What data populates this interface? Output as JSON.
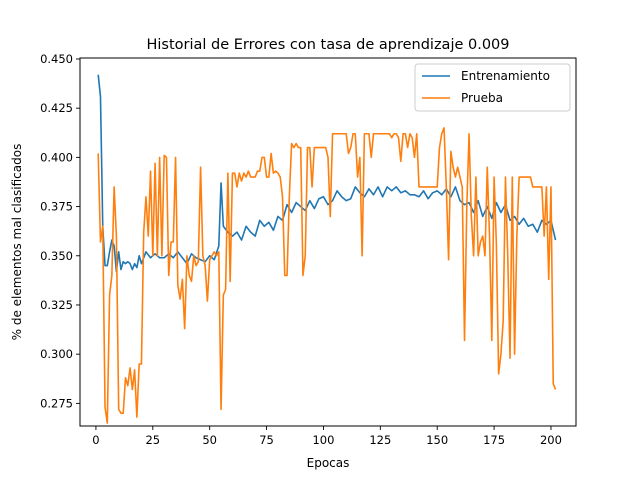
{
  "chart_data": {
    "type": "line",
    "title": "Historial de Errores con tasa de aprendizaje 0.009",
    "xlabel": "Epocas",
    "ylabel": "% de elementos mal clasificados",
    "xlim": [
      -7,
      211
    ],
    "ylim": [
      0.2635,
      0.4505
    ],
    "xticks": [
      0,
      25,
      50,
      75,
      100,
      125,
      150,
      175,
      200
    ],
    "yticks": [
      0.275,
      0.3,
      0.325,
      0.35,
      0.375,
      0.4,
      0.425,
      0.45
    ],
    "ytick_labels": [
      "0.275",
      "0.300",
      "0.325",
      "0.350",
      "0.375",
      "0.400",
      "0.425",
      "0.450"
    ],
    "grid": false,
    "legend_position": "top-right",
    "series": [
      {
        "name": "Entrenamiento",
        "color": "#1f77b4",
        "x": [
          1,
          2,
          3,
          4,
          5,
          6,
          7,
          8,
          9,
          10,
          11,
          12,
          13,
          14,
          15,
          16,
          17,
          18,
          19,
          20,
          22,
          24,
          26,
          28,
          30,
          32,
          34,
          36,
          38,
          40,
          42,
          44,
          46,
          48,
          50,
          52,
          54,
          55,
          56,
          58,
          60,
          62,
          64,
          66,
          68,
          70,
          72,
          74,
          76,
          78,
          80,
          82,
          84,
          86,
          88,
          90,
          92,
          94,
          96,
          98,
          100,
          102,
          104,
          106,
          108,
          110,
          112,
          114,
          116,
          118,
          120,
          122,
          124,
          126,
          128,
          130,
          132,
          134,
          136,
          138,
          140,
          142,
          144,
          146,
          148,
          150,
          152,
          154,
          156,
          158,
          160,
          162,
          164,
          166,
          168,
          170,
          172,
          174,
          176,
          178,
          180,
          182,
          184,
          186,
          188,
          190,
          192,
          194,
          196,
          198,
          200,
          202
        ],
        "values": [
          0.442,
          0.431,
          0.365,
          0.345,
          0.345,
          0.352,
          0.358,
          0.355,
          0.342,
          0.352,
          0.343,
          0.347,
          0.346,
          0.347,
          0.346,
          0.343,
          0.346,
          0.344,
          0.35,
          0.346,
          0.352,
          0.349,
          0.351,
          0.349,
          0.349,
          0.351,
          0.349,
          0.352,
          0.349,
          0.346,
          0.351,
          0.349,
          0.348,
          0.347,
          0.35,
          0.348,
          0.355,
          0.387,
          0.365,
          0.362,
          0.36,
          0.362,
          0.358,
          0.365,
          0.362,
          0.36,
          0.368,
          0.365,
          0.367,
          0.363,
          0.37,
          0.368,
          0.376,
          0.372,
          0.377,
          0.375,
          0.373,
          0.378,
          0.374,
          0.379,
          0.38,
          0.376,
          0.378,
          0.383,
          0.38,
          0.378,
          0.379,
          0.385,
          0.382,
          0.38,
          0.384,
          0.381,
          0.385,
          0.38,
          0.385,
          0.383,
          0.385,
          0.382,
          0.383,
          0.381,
          0.381,
          0.38,
          0.383,
          0.379,
          0.382,
          0.383,
          0.381,
          0.384,
          0.38,
          0.385,
          0.378,
          0.376,
          0.377,
          0.372,
          0.378,
          0.37,
          0.375,
          0.369,
          0.377,
          0.372,
          0.376,
          0.368,
          0.37,
          0.366,
          0.369,
          0.365,
          0.366,
          0.362,
          0.368,
          0.366,
          0.368,
          0.358
        ]
      },
      {
        "name": "Prueba",
        "color": "#ff7f0e",
        "x": [
          1,
          2,
          3,
          4,
          5,
          6,
          7,
          8,
          9,
          10,
          11,
          12,
          13,
          14,
          15,
          16,
          17,
          18,
          19,
          20,
          21,
          22,
          23,
          24,
          25,
          26,
          27,
          28,
          29,
          30,
          31,
          32,
          33,
          34,
          35,
          36,
          37,
          38,
          39,
          40,
          41,
          42,
          43,
          44,
          45,
          46,
          47,
          48,
          49,
          50,
          51,
          52,
          53,
          54,
          55,
          56,
          57,
          58,
          59,
          60,
          61,
          62,
          63,
          64,
          65,
          66,
          67,
          68,
          69,
          70,
          71,
          72,
          73,
          74,
          75,
          76,
          77,
          78,
          79,
          80,
          81,
          82,
          83,
          84,
          85,
          86,
          87,
          88,
          89,
          90,
          91,
          92,
          93,
          94,
          95,
          96,
          97,
          98,
          99,
          100,
          101,
          102,
          103,
          104,
          105,
          106,
          107,
          108,
          109,
          110,
          111,
          112,
          113,
          114,
          115,
          116,
          117,
          118,
          119,
          120,
          121,
          122,
          123,
          124,
          125,
          126,
          127,
          128,
          129,
          130,
          131,
          132,
          133,
          134,
          135,
          136,
          137,
          138,
          139,
          140,
          141,
          142,
          143,
          144,
          145,
          146,
          147,
          148,
          149,
          150,
          151,
          152,
          153,
          154,
          155,
          156,
          157,
          158,
          159,
          160,
          161,
          162,
          163,
          164,
          165,
          166,
          167,
          168,
          169,
          170,
          171,
          172,
          173,
          174,
          175,
          176,
          177,
          178,
          179,
          180,
          181,
          182,
          183,
          184,
          185,
          186,
          187,
          188,
          189,
          190,
          191,
          192,
          193,
          194,
          195,
          196,
          197,
          198,
          199,
          200,
          201,
          202
        ],
        "values": [
          0.402,
          0.357,
          0.365,
          0.273,
          0.265,
          0.33,
          0.34,
          0.385,
          0.36,
          0.272,
          0.27,
          0.27,
          0.288,
          0.284,
          0.293,
          0.282,
          0.292,
          0.268,
          0.295,
          0.295,
          0.362,
          0.38,
          0.36,
          0.393,
          0.35,
          0.397,
          0.35,
          0.4,
          0.35,
          0.401,
          0.4,
          0.34,
          0.357,
          0.357,
          0.4,
          0.335,
          0.328,
          0.338,
          0.313,
          0.35,
          0.34,
          0.337,
          0.35,
          0.345,
          0.347,
          0.395,
          0.35,
          0.345,
          0.327,
          0.348,
          0.35,
          0.352,
          0.35,
          0.352,
          0.272,
          0.33,
          0.333,
          0.392,
          0.337,
          0.392,
          0.392,
          0.385,
          0.392,
          0.388,
          0.392,
          0.39,
          0.393,
          0.39,
          0.39,
          0.39,
          0.393,
          0.393,
          0.4,
          0.4,
          0.39,
          0.39,
          0.402,
          0.392,
          0.393,
          0.392,
          0.39,
          0.38,
          0.34,
          0.34,
          0.38,
          0.407,
          0.405,
          0.407,
          0.405,
          0.405,
          0.34,
          0.35,
          0.405,
          0.405,
          0.385,
          0.405,
          0.405,
          0.405,
          0.405,
          0.405,
          0.405,
          0.4,
          0.37,
          0.412,
          0.412,
          0.412,
          0.412,
          0.412,
          0.412,
          0.412,
          0.402,
          0.405,
          0.412,
          0.412,
          0.39,
          0.4,
          0.35,
          0.412,
          0.412,
          0.412,
          0.4,
          0.412,
          0.412,
          0.412,
          0.412,
          0.412,
          0.412,
          0.412,
          0.412,
          0.41,
          0.412,
          0.412,
          0.41,
          0.398,
          0.412,
          0.412,
          0.405,
          0.412,
          0.41,
          0.4,
          0.412,
          0.385,
          0.385,
          0.385,
          0.385,
          0.385,
          0.385,
          0.385,
          0.385,
          0.385,
          0.405,
          0.412,
          0.415,
          0.385,
          0.348,
          0.403,
          0.395,
          0.39,
          0.395,
          0.39,
          0.385,
          0.307,
          0.375,
          0.412,
          0.37,
          0.35,
          0.39,
          0.35,
          0.357,
          0.36,
          0.35,
          0.395,
          0.36,
          0.307,
          0.39,
          0.356,
          0.29,
          0.3,
          0.317,
          0.39,
          0.35,
          0.298,
          0.39,
          0.3,
          0.36,
          0.39,
          0.39,
          0.39,
          0.39,
          0.39,
          0.39,
          0.385,
          0.385,
          0.385,
          0.385,
          0.385,
          0.36,
          0.385,
          0.338,
          0.385,
          0.285,
          0.282
        ]
      }
    ]
  }
}
